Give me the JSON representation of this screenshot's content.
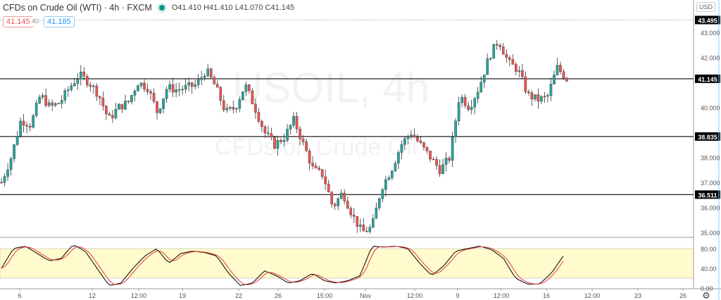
{
  "header": {
    "title": "CFDs on Crude Oil (WTI) · 4h · FXCM",
    "ohlc": "O41.410 H41.410 L41.070 C41.145",
    "sell_price": "41.145",
    "spread": "40",
    "buy_price": "41.185",
    "currency": "USD"
  },
  "watermark": {
    "symbol": "USOIL, 4h",
    "description": "CFDs on Crude Oil"
  },
  "colors": {
    "up": "#26a69a",
    "down": "#ef5350",
    "k_line": "#000000",
    "d_line": "#e53935",
    "band": "#fffbcc"
  },
  "chart_data": {
    "type": "candlestick",
    "price_axis": {
      "ticks": [
        "43.000",
        "42.000",
        "40.000",
        "38.000",
        "37.000",
        "36.000",
        "35.000"
      ],
      "range": [
        34.6,
        44.0
      ]
    },
    "price_labels": [
      {
        "value": 43.495,
        "text": "43.495",
        "style": "dotted"
      },
      {
        "value": 41.145,
        "text": "41.145",
        "style": "line"
      },
      {
        "value": 38.835,
        "text": "38.835",
        "style": "line"
      },
      {
        "value": 36.511,
        "text": "36.511",
        "style": "line"
      }
    ],
    "close_path": [
      37.0,
      38.0,
      39.5,
      39.3,
      40.5,
      40.0,
      40.2,
      40.8,
      41.3,
      41.0,
      40.5,
      39.5,
      40.0,
      40.2,
      41.0,
      40.8,
      39.8,
      40.8,
      40.7,
      40.8,
      40.9,
      41.5,
      40.8,
      39.8,
      40.0,
      40.9,
      40.0,
      39.0,
      38.5,
      38.8,
      39.5,
      38.5,
      37.5,
      37.3,
      36.0,
      36.6,
      35.7,
      35.0,
      35.2,
      36.8,
      37.5,
      38.5,
      39.0,
      38.5,
      38.0,
      37.5,
      38.0,
      40.5,
      40.0,
      40.8,
      42.0,
      42.7,
      41.8,
      41.5,
      40.5,
      40.3,
      40.4,
      41.6,
      41.145
    ],
    "oscillator": {
      "ticks": [
        "80.00",
        "40.00",
        "0.00"
      ],
      "range": [
        0,
        100
      ],
      "band": [
        20,
        80
      ],
      "k_path": [
        40,
        80,
        85,
        70,
        55,
        60,
        88,
        75,
        40,
        5,
        10,
        40,
        65,
        80,
        50,
        70,
        75,
        72,
        65,
        30,
        5,
        10,
        35,
        25,
        10,
        15,
        30,
        15,
        10,
        15,
        25,
        85,
        83,
        85,
        80,
        50,
        25,
        45,
        75,
        80,
        85,
        78,
        60,
        20,
        8,
        8,
        30,
        65
      ]
    },
    "time_axis": {
      "ticks": [
        "6",
        "12",
        "12:00",
        "19",
        "22",
        "26",
        "15:00",
        "Nov",
        "12:00",
        "9",
        "12:00",
        "16",
        "12:00",
        "23",
        "26"
      ]
    }
  }
}
